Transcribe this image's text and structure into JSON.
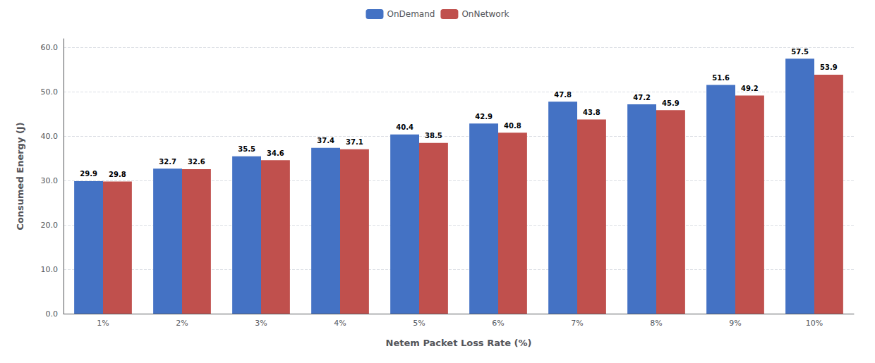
{
  "chart_data": {
    "type": "bar",
    "categories": [
      "1%",
      "2%",
      "3%",
      "4%",
      "5%",
      "6%",
      "7%",
      "8%",
      "9%",
      "10%"
    ],
    "series": [
      {
        "name": "OnDemand",
        "color": "#4472C4",
        "values": [
          29.9,
          32.7,
          35.5,
          37.4,
          40.4,
          42.9,
          47.8,
          47.2,
          51.6,
          57.5
        ]
      },
      {
        "name": "OnNetwork",
        "color": "#C0504D",
        "values": [
          29.8,
          32.6,
          34.6,
          37.1,
          38.5,
          40.8,
          43.8,
          45.9,
          49.2,
          53.9
        ]
      }
    ],
    "xlabel": "Netem Packet Loss Rate (%)",
    "ylabel": "Consumed Energy (J)",
    "ylim": [
      0,
      62
    ],
    "yticks": [
      {
        "value": 0,
        "label": "0.0"
      },
      {
        "value": 10,
        "label": "10.0"
      },
      {
        "value": 20,
        "label": "20.0"
      },
      {
        "value": 30,
        "label": "30.0"
      },
      {
        "value": 40,
        "label": "40.0"
      },
      {
        "value": 50,
        "label": "50.0"
      },
      {
        "value": 60,
        "label": "60.0"
      }
    ],
    "grid": true,
    "legend": "top",
    "data_labels": true
  }
}
